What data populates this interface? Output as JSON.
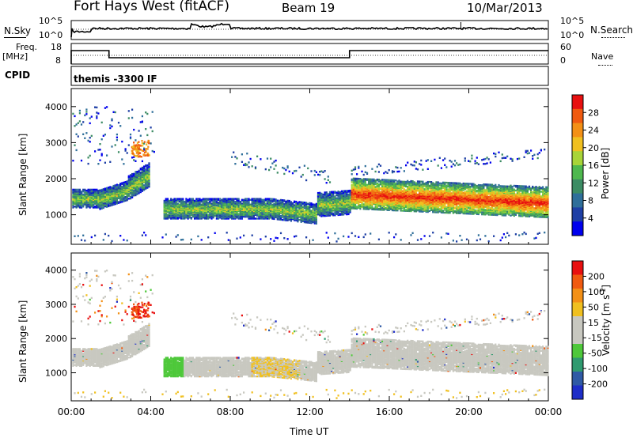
{
  "header": {
    "title": "Fort Hays West (fitACF)",
    "beam": "Beam 19",
    "date": "10/Mar/2013"
  },
  "top_panels": {
    "nsky_label": "N.Sky",
    "nsearch_label": "N.Search",
    "nsky_ticks": [
      "10^5",
      "10^0"
    ],
    "nsearch_ticks": [
      "10^5",
      "10^0"
    ],
    "freq_label_1": "Freq.",
    "freq_label_2": "[MHz]",
    "freq_ticks": [
      "18",
      "8"
    ],
    "nave_label": "Nave",
    "nave_ticks": [
      "60",
      "0"
    ],
    "cpid_label": "CPID",
    "cpid_text": "themis -3300 IF"
  },
  "colors": {
    "power": [
      "#0000ee",
      "#1e3fa5",
      "#2f6f9a",
      "#3c8c64",
      "#4eb84e",
      "#a8d438",
      "#f0c020",
      "#f39016",
      "#f05a10",
      "#e81010"
    ],
    "velocity": [
      "#e81010",
      "#f05a10",
      "#f39016",
      "#f0c020",
      "#c8c8c0",
      "#c8c8c0",
      "#4ec83a",
      "#2f9a6f",
      "#2f5aa5",
      "#1e2ec8"
    ]
  },
  "chart_data": [
    {
      "type": "heatmap",
      "name": "power",
      "ylabel": "Slant Range [km]",
      "ylim": [
        180,
        4500
      ],
      "yticks": [
        "4000",
        "3000",
        "2000",
        "1000"
      ],
      "colorbar_label": "Power [dB]",
      "colorbar_ticks": [
        "28",
        "24",
        "20",
        "16",
        "12",
        "8",
        "4"
      ]
    },
    {
      "type": "heatmap",
      "name": "velocity",
      "ylabel": "Slant Range [km]",
      "ylim": [
        180,
        4500
      ],
      "yticks": [
        "4000",
        "3000",
        "2000",
        "1000"
      ],
      "colorbar_label": "Velocity [m s",
      "colorbar_label_sup": "-1",
      "colorbar_label_end": "]",
      "colorbar_ticks": [
        "200",
        "100",
        "50",
        "15",
        "-15",
        "-50",
        "-100",
        "-200"
      ]
    }
  ],
  "time_axis": {
    "xlabel": "Time UT",
    "ticks": [
      "00:00",
      "04:00",
      "08:00",
      "12:00",
      "16:00",
      "20:00",
      "00:00"
    ],
    "xlim": [
      0,
      24
    ]
  }
}
